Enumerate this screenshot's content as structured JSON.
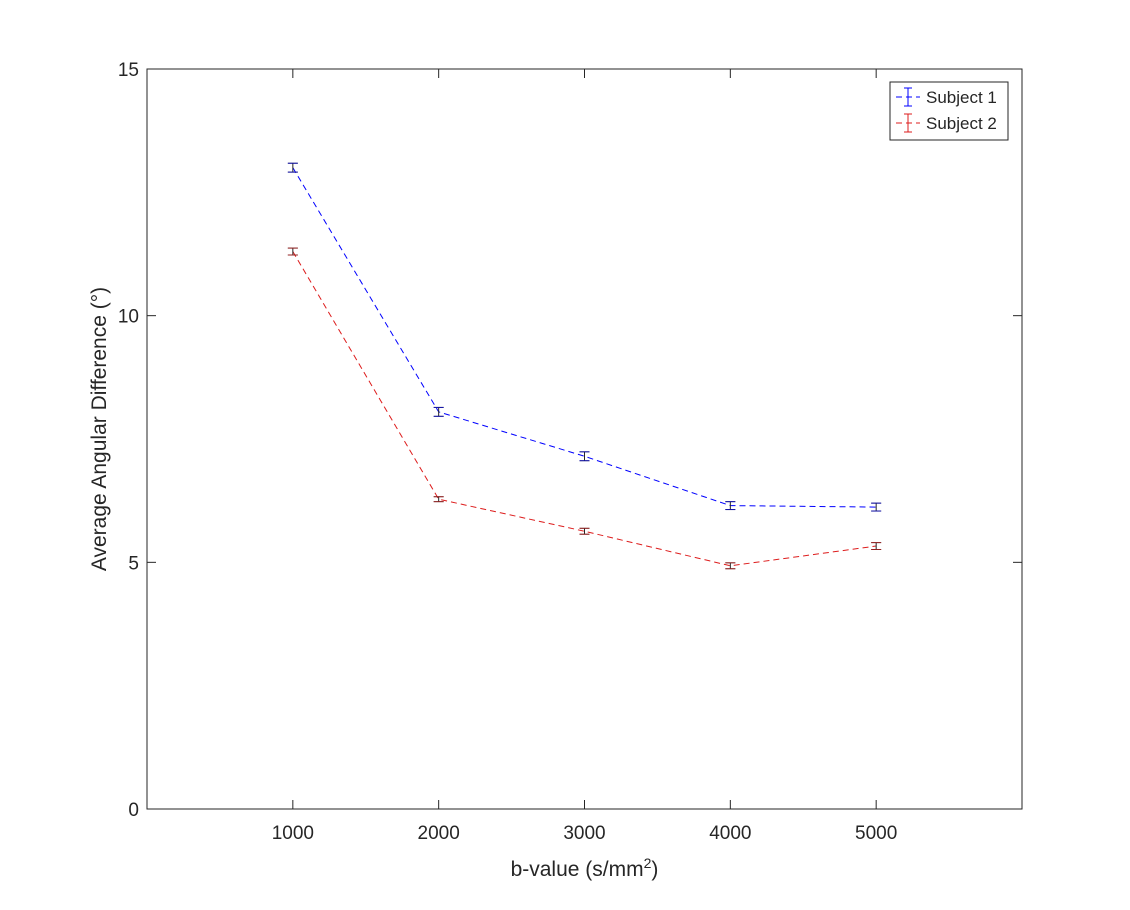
{
  "chart_data": {
    "type": "line",
    "xlabel": "b-value (s/mm",
    "xlabel_sup": "2",
    "xlabel_tail": ")",
    "ylabel": "Average Angular Difference (°)",
    "xlim": [
      0,
      6000
    ],
    "ylim": [
      0,
      15
    ],
    "x_ticks": [
      1000,
      2000,
      3000,
      4000,
      5000
    ],
    "y_ticks": [
      0,
      5,
      10,
      15
    ],
    "x": [
      1000,
      2000,
      3000,
      4000,
      5000
    ],
    "grid": false,
    "legend_position": "top-right",
    "series": [
      {
        "name": "Subject 1",
        "color": "#0000ff",
        "line_style": "dashed",
        "values": [
          13.0,
          8.05,
          7.15,
          6.15,
          6.12
        ],
        "errors": [
          0.09,
          0.09,
          0.09,
          0.08,
          0.08
        ]
      },
      {
        "name": "Subject 2",
        "color": "#dd1c1c",
        "line_style": "dashed",
        "values": [
          11.3,
          6.28,
          5.63,
          4.93,
          5.33
        ],
        "errors": [
          0.07,
          0.05,
          0.06,
          0.06,
          0.07
        ]
      }
    ]
  }
}
